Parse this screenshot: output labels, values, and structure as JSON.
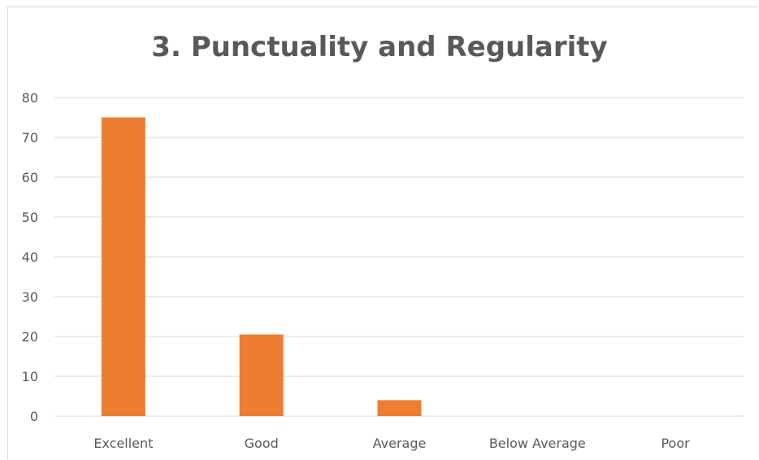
{
  "chart_data": {
    "type": "bar",
    "title": "3. Punctuality and Regularity",
    "categories": [
      "Excellent",
      "Good",
      "Average",
      "Below Average",
      "Poor"
    ],
    "values": [
      75,
      20.5,
      4,
      0,
      0
    ],
    "ylim": [
      0,
      80
    ],
    "yticks": [
      0,
      10,
      20,
      30,
      40,
      50,
      60,
      70,
      80
    ],
    "xlabel": "",
    "ylabel": "",
    "grid": true,
    "legend": "none",
    "colors": {
      "bar": "#ed7d31",
      "grid": "#d9d9d9",
      "text": "#595959"
    }
  }
}
